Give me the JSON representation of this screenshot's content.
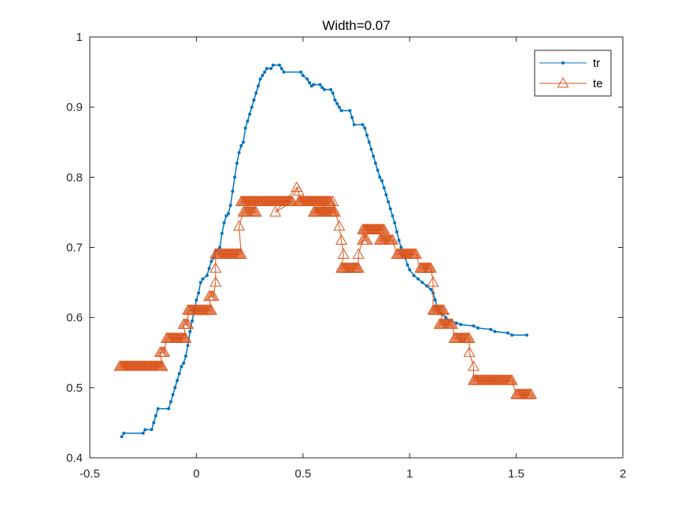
{
  "chart_data": {
    "type": "line",
    "title": "Width=0.07",
    "xlabel": "",
    "ylabel": "",
    "xlim": [
      -0.5,
      2
    ],
    "ylim": [
      0.4,
      1
    ],
    "xticks": [
      -0.5,
      0,
      0.5,
      1,
      1.5,
      2
    ],
    "yticks": [
      0.4,
      0.5,
      0.6,
      0.7,
      0.8,
      0.9,
      1
    ],
    "xtick_labels": [
      "-0.5",
      "0",
      "0.5",
      "1",
      "1.5",
      "2"
    ],
    "ytick_labels": [
      "0.4",
      "0.5",
      "0.6",
      "0.7",
      "0.8",
      "0.9",
      "1"
    ],
    "grid": false,
    "legend_position": "top-right",
    "series": [
      {
        "name": "tr",
        "color": "#0072BD",
        "marker": "point",
        "points": [
          [
            -0.35,
            0.43
          ],
          [
            -0.34,
            0.435
          ],
          [
            -0.25,
            0.435
          ],
          [
            -0.24,
            0.44
          ],
          [
            -0.21,
            0.44
          ],
          [
            -0.2,
            0.45
          ],
          [
            -0.19,
            0.46
          ],
          [
            -0.18,
            0.47
          ],
          [
            -0.13,
            0.47
          ],
          [
            -0.12,
            0.48
          ],
          [
            -0.11,
            0.49
          ],
          [
            -0.1,
            0.5
          ],
          [
            -0.09,
            0.51
          ],
          [
            -0.08,
            0.52
          ],
          [
            -0.07,
            0.53
          ],
          [
            -0.06,
            0.535
          ],
          [
            -0.05,
            0.545
          ],
          [
            -0.04,
            0.56
          ],
          [
            -0.03,
            0.58
          ],
          [
            -0.02,
            0.595
          ],
          [
            -0.01,
            0.61
          ],
          [
            0.0,
            0.625
          ],
          [
            0.01,
            0.635
          ],
          [
            0.02,
            0.65
          ],
          [
            0.03,
            0.655
          ],
          [
            0.05,
            0.66
          ],
          [
            0.06,
            0.67
          ],
          [
            0.07,
            0.68
          ],
          [
            0.08,
            0.685
          ],
          [
            0.09,
            0.695
          ],
          [
            0.11,
            0.7
          ],
          [
            0.12,
            0.72
          ],
          [
            0.13,
            0.735
          ],
          [
            0.14,
            0.745
          ],
          [
            0.15,
            0.748
          ],
          [
            0.16,
            0.76
          ],
          [
            0.17,
            0.78
          ],
          [
            0.18,
            0.8
          ],
          [
            0.19,
            0.82
          ],
          [
            0.2,
            0.835
          ],
          [
            0.21,
            0.845
          ],
          [
            0.22,
            0.85
          ],
          [
            0.23,
            0.87
          ],
          [
            0.24,
            0.88
          ],
          [
            0.25,
            0.89
          ],
          [
            0.26,
            0.9
          ],
          [
            0.27,
            0.91
          ],
          [
            0.28,
            0.92
          ],
          [
            0.29,
            0.93
          ],
          [
            0.3,
            0.94
          ],
          [
            0.31,
            0.945
          ],
          [
            0.32,
            0.95
          ],
          [
            0.33,
            0.955
          ],
          [
            0.35,
            0.955
          ],
          [
            0.36,
            0.96
          ],
          [
            0.39,
            0.96
          ],
          [
            0.4,
            0.955
          ],
          [
            0.41,
            0.95
          ],
          [
            0.49,
            0.95
          ],
          [
            0.5,
            0.945
          ],
          [
            0.52,
            0.94
          ],
          [
            0.53,
            0.935
          ],
          [
            0.54,
            0.93
          ],
          [
            0.55,
            0.932
          ],
          [
            0.58,
            0.932
          ],
          [
            0.59,
            0.928
          ],
          [
            0.6,
            0.925
          ],
          [
            0.63,
            0.925
          ],
          [
            0.64,
            0.92
          ],
          [
            0.65,
            0.91
          ],
          [
            0.66,
            0.905
          ],
          [
            0.67,
            0.9
          ],
          [
            0.68,
            0.895
          ],
          [
            0.72,
            0.895
          ],
          [
            0.73,
            0.885
          ],
          [
            0.74,
            0.875
          ],
          [
            0.78,
            0.875
          ],
          [
            0.79,
            0.87
          ],
          [
            0.8,
            0.86
          ],
          [
            0.81,
            0.85
          ],
          [
            0.82,
            0.84
          ],
          [
            0.83,
            0.83
          ],
          [
            0.84,
            0.82
          ],
          [
            0.85,
            0.81
          ],
          [
            0.86,
            0.8
          ],
          [
            0.87,
            0.795
          ],
          [
            0.88,
            0.785
          ],
          [
            0.89,
            0.775
          ],
          [
            0.9,
            0.765
          ],
          [
            0.91,
            0.755
          ],
          [
            0.92,
            0.745
          ],
          [
            0.93,
            0.735
          ],
          [
            0.94,
            0.722
          ],
          [
            0.95,
            0.71
          ],
          [
            0.96,
            0.7
          ],
          [
            0.97,
            0.69
          ],
          [
            0.98,
            0.685
          ],
          [
            0.99,
            0.675
          ],
          [
            1.0,
            0.668
          ],
          [
            1.02,
            0.66
          ],
          [
            1.04,
            0.655
          ],
          [
            1.06,
            0.65
          ],
          [
            1.08,
            0.645
          ],
          [
            1.1,
            0.64
          ],
          [
            1.11,
            0.635
          ],
          [
            1.12,
            0.625
          ],
          [
            1.13,
            0.615
          ],
          [
            1.15,
            0.605
          ],
          [
            1.17,
            0.6
          ],
          [
            1.19,
            0.595
          ],
          [
            1.22,
            0.592
          ],
          [
            1.24,
            0.59
          ],
          [
            1.3,
            0.588
          ],
          [
            1.32,
            0.585
          ],
          [
            1.38,
            0.583
          ],
          [
            1.4,
            0.58
          ],
          [
            1.46,
            0.578
          ],
          [
            1.48,
            0.575
          ],
          [
            1.55,
            0.575
          ]
        ]
      },
      {
        "name": "te",
        "color": "#D95319",
        "marker": "triangle",
        "points": [
          [
            -0.36,
            0.53
          ],
          [
            -0.16,
            0.53
          ],
          [
            -0.17,
            0.55
          ],
          [
            -0.15,
            0.55
          ],
          [
            -0.14,
            0.57
          ],
          [
            -0.05,
            0.57
          ],
          [
            -0.06,
            0.59
          ],
          [
            -0.04,
            0.59
          ],
          [
            -0.04,
            0.61
          ],
          [
            0.07,
            0.61
          ],
          [
            0.06,
            0.63
          ],
          [
            0.08,
            0.63
          ],
          [
            0.09,
            0.65
          ],
          [
            0.09,
            0.67
          ],
          [
            0.09,
            0.69
          ],
          [
            0.21,
            0.69
          ],
          [
            0.2,
            0.73
          ],
          [
            0.22,
            0.75
          ],
          [
            0.28,
            0.75
          ],
          [
            0.21,
            0.765
          ],
          [
            0.45,
            0.765
          ],
          [
            0.37,
            0.75
          ],
          [
            0.47,
            0.785
          ],
          [
            0.48,
            0.78
          ],
          [
            0.48,
            0.765
          ],
          [
            0.63,
            0.765
          ],
          [
            0.55,
            0.75
          ],
          [
            0.65,
            0.75
          ],
          [
            0.64,
            0.765
          ],
          [
            0.67,
            0.73
          ],
          [
            0.68,
            0.71
          ],
          [
            0.69,
            0.69
          ],
          [
            0.68,
            0.67
          ],
          [
            0.76,
            0.67
          ],
          [
            0.76,
            0.69
          ],
          [
            0.78,
            0.71
          ],
          [
            0.8,
            0.71
          ],
          [
            0.78,
            0.725
          ],
          [
            0.88,
            0.725
          ],
          [
            0.86,
            0.71
          ],
          [
            0.92,
            0.71
          ],
          [
            0.94,
            0.69
          ],
          [
            1.03,
            0.69
          ],
          [
            1.05,
            0.67
          ],
          [
            1.1,
            0.67
          ],
          [
            1.11,
            0.65
          ],
          [
            1.11,
            0.61
          ],
          [
            1.16,
            0.61
          ],
          [
            1.14,
            0.59
          ],
          [
            1.2,
            0.59
          ],
          [
            1.21,
            0.57
          ],
          [
            1.28,
            0.57
          ],
          [
            1.28,
            0.55
          ],
          [
            1.3,
            0.53
          ],
          [
            1.3,
            0.51
          ],
          [
            1.48,
            0.51
          ],
          [
            1.5,
            0.49
          ],
          [
            1.57,
            0.49
          ]
        ]
      }
    ]
  }
}
